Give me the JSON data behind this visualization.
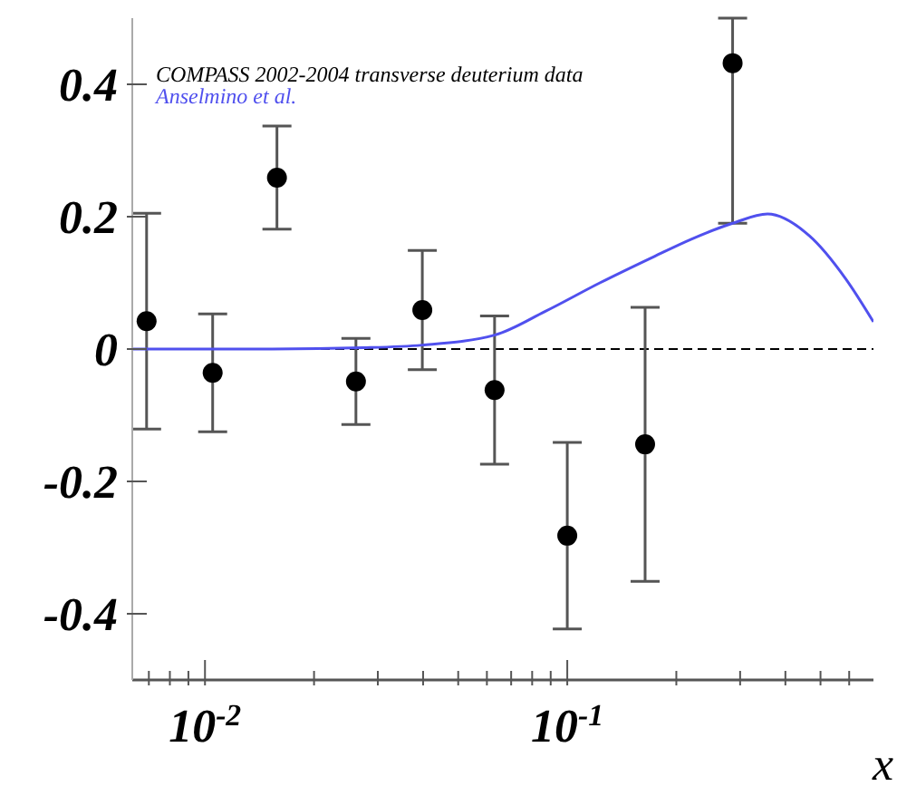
{
  "chart_data": {
    "type": "scatter",
    "xlabel": "x",
    "log": "x",
    "xlim": [
      0.0063,
      0.7
    ],
    "ylim": [
      -0.5,
      0.5
    ],
    "xticks": [
      {
        "value": 0.007,
        "label": null
      },
      {
        "value": 0.008,
        "label": null
      },
      {
        "value": 0.009,
        "label": null
      },
      {
        "value": 0.01,
        "label": "10$^{-2}$"
      },
      {
        "value": 0.02,
        "label": null
      },
      {
        "value": 0.03,
        "label": null
      },
      {
        "value": 0.04,
        "label": null
      },
      {
        "value": 0.05,
        "label": null
      },
      {
        "value": 0.06,
        "label": null
      },
      {
        "value": 0.07,
        "label": null
      },
      {
        "value": 0.08,
        "label": null
      },
      {
        "value": 0.09,
        "label": null
      },
      {
        "value": 0.1,
        "label": "10$^{-1}$"
      },
      {
        "value": 0.2,
        "label": null
      },
      {
        "value": 0.3,
        "label": null
      },
      {
        "value": 0.4,
        "label": null
      },
      {
        "value": 0.5,
        "label": null
      },
      {
        "value": 0.6,
        "label": null
      }
    ],
    "yticks": [
      -0.4,
      -0.2,
      0,
      0.2,
      0.4
    ],
    "legend": "top left",
    "marker": "circle",
    "ref_lines": [
      {
        "axis": "y",
        "value": 0,
        "line_style": "dashed",
        "color": "#000000"
      }
    ],
    "series": [
      {
        "name": "COMPASS 2002-2004 transverse deuterium data",
        "color": "#000000",
        "x": [
          0.0069,
          0.0105,
          0.0158,
          0.0261,
          0.0398,
          0.063,
          0.1,
          0.164,
          0.286
        ],
        "values": [
          0.042,
          -0.036,
          0.259,
          -0.049,
          0.059,
          -0.062,
          -0.282,
          -0.144,
          0.432
        ],
        "errors": [
          0.163,
          0.089,
          0.078,
          0.065,
          0.09,
          0.112,
          0.141,
          0.207,
          [
            0.19,
            0.5
          ]
        ]
      },
      {
        "name": "Anselmino et al.",
        "type": "line",
        "color": "#5050ee",
        "marker": "none",
        "x": [
          0.0063,
          0.0153,
          0.0274,
          0.0398,
          0.063,
          0.087,
          0.123,
          0.174,
          0.22,
          0.286,
          0.357,
          0.466,
          0.587,
          0.7
        ],
        "values": [
          0,
          0,
          0.002,
          0.006,
          0.021,
          0.057,
          0.1,
          0.14,
          0.166,
          0.19,
          0.204,
          0.171,
          0.106,
          0.041
        ]
      }
    ]
  }
}
